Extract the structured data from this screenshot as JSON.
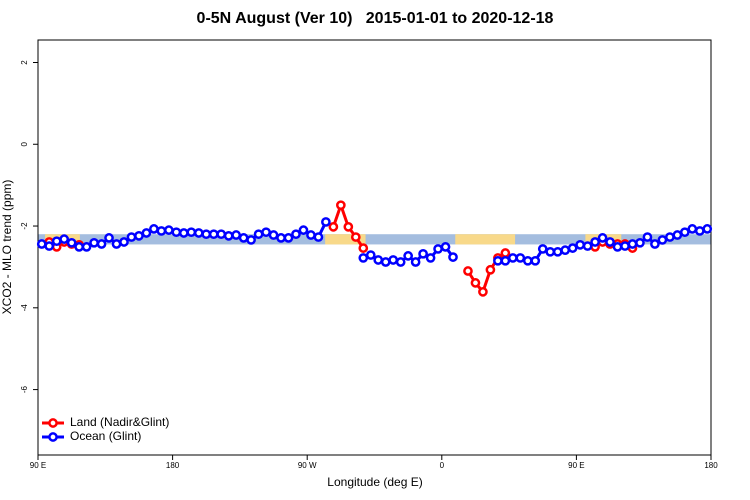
{
  "chart_data": {
    "type": "line",
    "title": "0-5N August (Ver 10)   2015-01-01 to 2020-12-18",
    "xlabel": "Longitude (deg E)",
    "ylabel": "XCO2 - MLO trend (ppm)",
    "xlim": [
      90,
      540
    ],
    "ylim": [
      -7.6,
      2.55
    ],
    "xticks": [
      {
        "value": 90,
        "label": "90 E"
      },
      {
        "value": 180,
        "label": "180"
      },
      {
        "value": 270,
        "label": "90 W"
      },
      {
        "value": 360,
        "label": "0"
      },
      {
        "value": 450,
        "label": "90 E"
      },
      {
        "value": 540,
        "label": "180"
      }
    ],
    "yticks": [
      -6,
      -4,
      -2,
      0,
      2
    ],
    "legend": "lower left",
    "band": {
      "ylim": [
        -2.45,
        -2.2
      ],
      "ocean_color": "#a4bddf",
      "land_color": "#f8d98a",
      "land_spans": [
        [
          94.7,
          118
        ],
        [
          282,
          309
        ],
        [
          369,
          409
        ],
        [
          456,
          480
        ]
      ]
    },
    "x": [
      92.5,
      97.5,
      102.5,
      107.5,
      112.5,
      117.5,
      122.5,
      127.5,
      132.5,
      137.5,
      142.5,
      147.5,
      152.5,
      157.5,
      162.5,
      167.5,
      172.5,
      177.5,
      182.5,
      187.5,
      192.5,
      197.5,
      202.5,
      207.5,
      212.5,
      217.5,
      222.5,
      227.5,
      232.5,
      237.5,
      242.5,
      247.5,
      252.5,
      257.5,
      262.5,
      267.5,
      272.5,
      277.5,
      282.5,
      287.5,
      292.5,
      297.5,
      302.5,
      307.5,
      312.5,
      317.5,
      322.5,
      327.5,
      332.5,
      337.5,
      342.5,
      347.5,
      352.5,
      357.5,
      362.5,
      367.5,
      372.5,
      377.5,
      382.5,
      387.5,
      392.5,
      397.5,
      402.5,
      407.5,
      412.5,
      417.5,
      422.5,
      427.5,
      432.5,
      437.5,
      442.5,
      447.5,
      452.5,
      457.5,
      462.5,
      467.5,
      472.5,
      477.5,
      482.5,
      487.5,
      492.5,
      497.5,
      502.5,
      507.5,
      512.5,
      517.5,
      522.5,
      527.5,
      532.5,
      537.5
    ],
    "series": [
      {
        "name": "Land (Nadir&Glint)",
        "color": "#ff0000",
        "values": [
          null,
          -2.39,
          -2.51,
          -2.39,
          -2.44,
          -2.46,
          null,
          null,
          null,
          null,
          null,
          null,
          null,
          null,
          null,
          null,
          null,
          null,
          null,
          null,
          null,
          null,
          null,
          null,
          null,
          null,
          null,
          null,
          null,
          null,
          null,
          null,
          null,
          null,
          null,
          null,
          null,
          null,
          null,
          -2.02,
          -1.49,
          -2.02,
          -2.27,
          -2.54,
          null,
          null,
          null,
          null,
          null,
          null,
          null,
          null,
          null,
          null,
          null,
          null,
          null,
          -3.1,
          -3.39,
          -3.61,
          -3.07,
          -2.78,
          -2.66,
          null,
          null,
          null,
          null,
          null,
          null,
          null,
          null,
          null,
          null,
          null,
          -2.51,
          -2.39,
          -2.44,
          -2.44,
          -2.44,
          -2.54,
          null,
          null,
          null,
          null,
          null,
          null,
          null,
          null,
          null,
          null
        ]
      },
      {
        "name": "Ocean (Glint)",
        "color": "#0000ff",
        "values": [
          -2.44,
          -2.49,
          -2.37,
          -2.32,
          -2.41,
          -2.51,
          -2.51,
          -2.41,
          -2.44,
          -2.29,
          -2.44,
          -2.39,
          -2.27,
          -2.24,
          -2.17,
          -2.07,
          -2.12,
          -2.1,
          -2.15,
          -2.17,
          -2.15,
          -2.17,
          -2.2,
          -2.2,
          -2.2,
          -2.24,
          -2.22,
          -2.29,
          -2.34,
          -2.2,
          -2.15,
          -2.22,
          -2.29,
          -2.29,
          -2.2,
          -2.1,
          -2.22,
          -2.27,
          -1.9,
          null,
          null,
          null,
          null,
          -2.78,
          -2.71,
          -2.83,
          -2.88,
          -2.83,
          -2.88,
          -2.73,
          -2.88,
          -2.68,
          -2.78,
          -2.56,
          -2.51,
          -2.76,
          null,
          null,
          null,
          null,
          null,
          -2.85,
          -2.85,
          -2.78,
          -2.78,
          -2.85,
          -2.85,
          -2.56,
          -2.63,
          -2.63,
          -2.59,
          -2.54,
          -2.46,
          -2.49,
          -2.39,
          -2.29,
          -2.39,
          -2.51,
          -2.49,
          -2.44,
          -2.41,
          -2.27,
          -2.44,
          -2.34,
          -2.27,
          -2.22,
          -2.15,
          -2.07,
          -2.12,
          -2.07
        ]
      }
    ]
  }
}
